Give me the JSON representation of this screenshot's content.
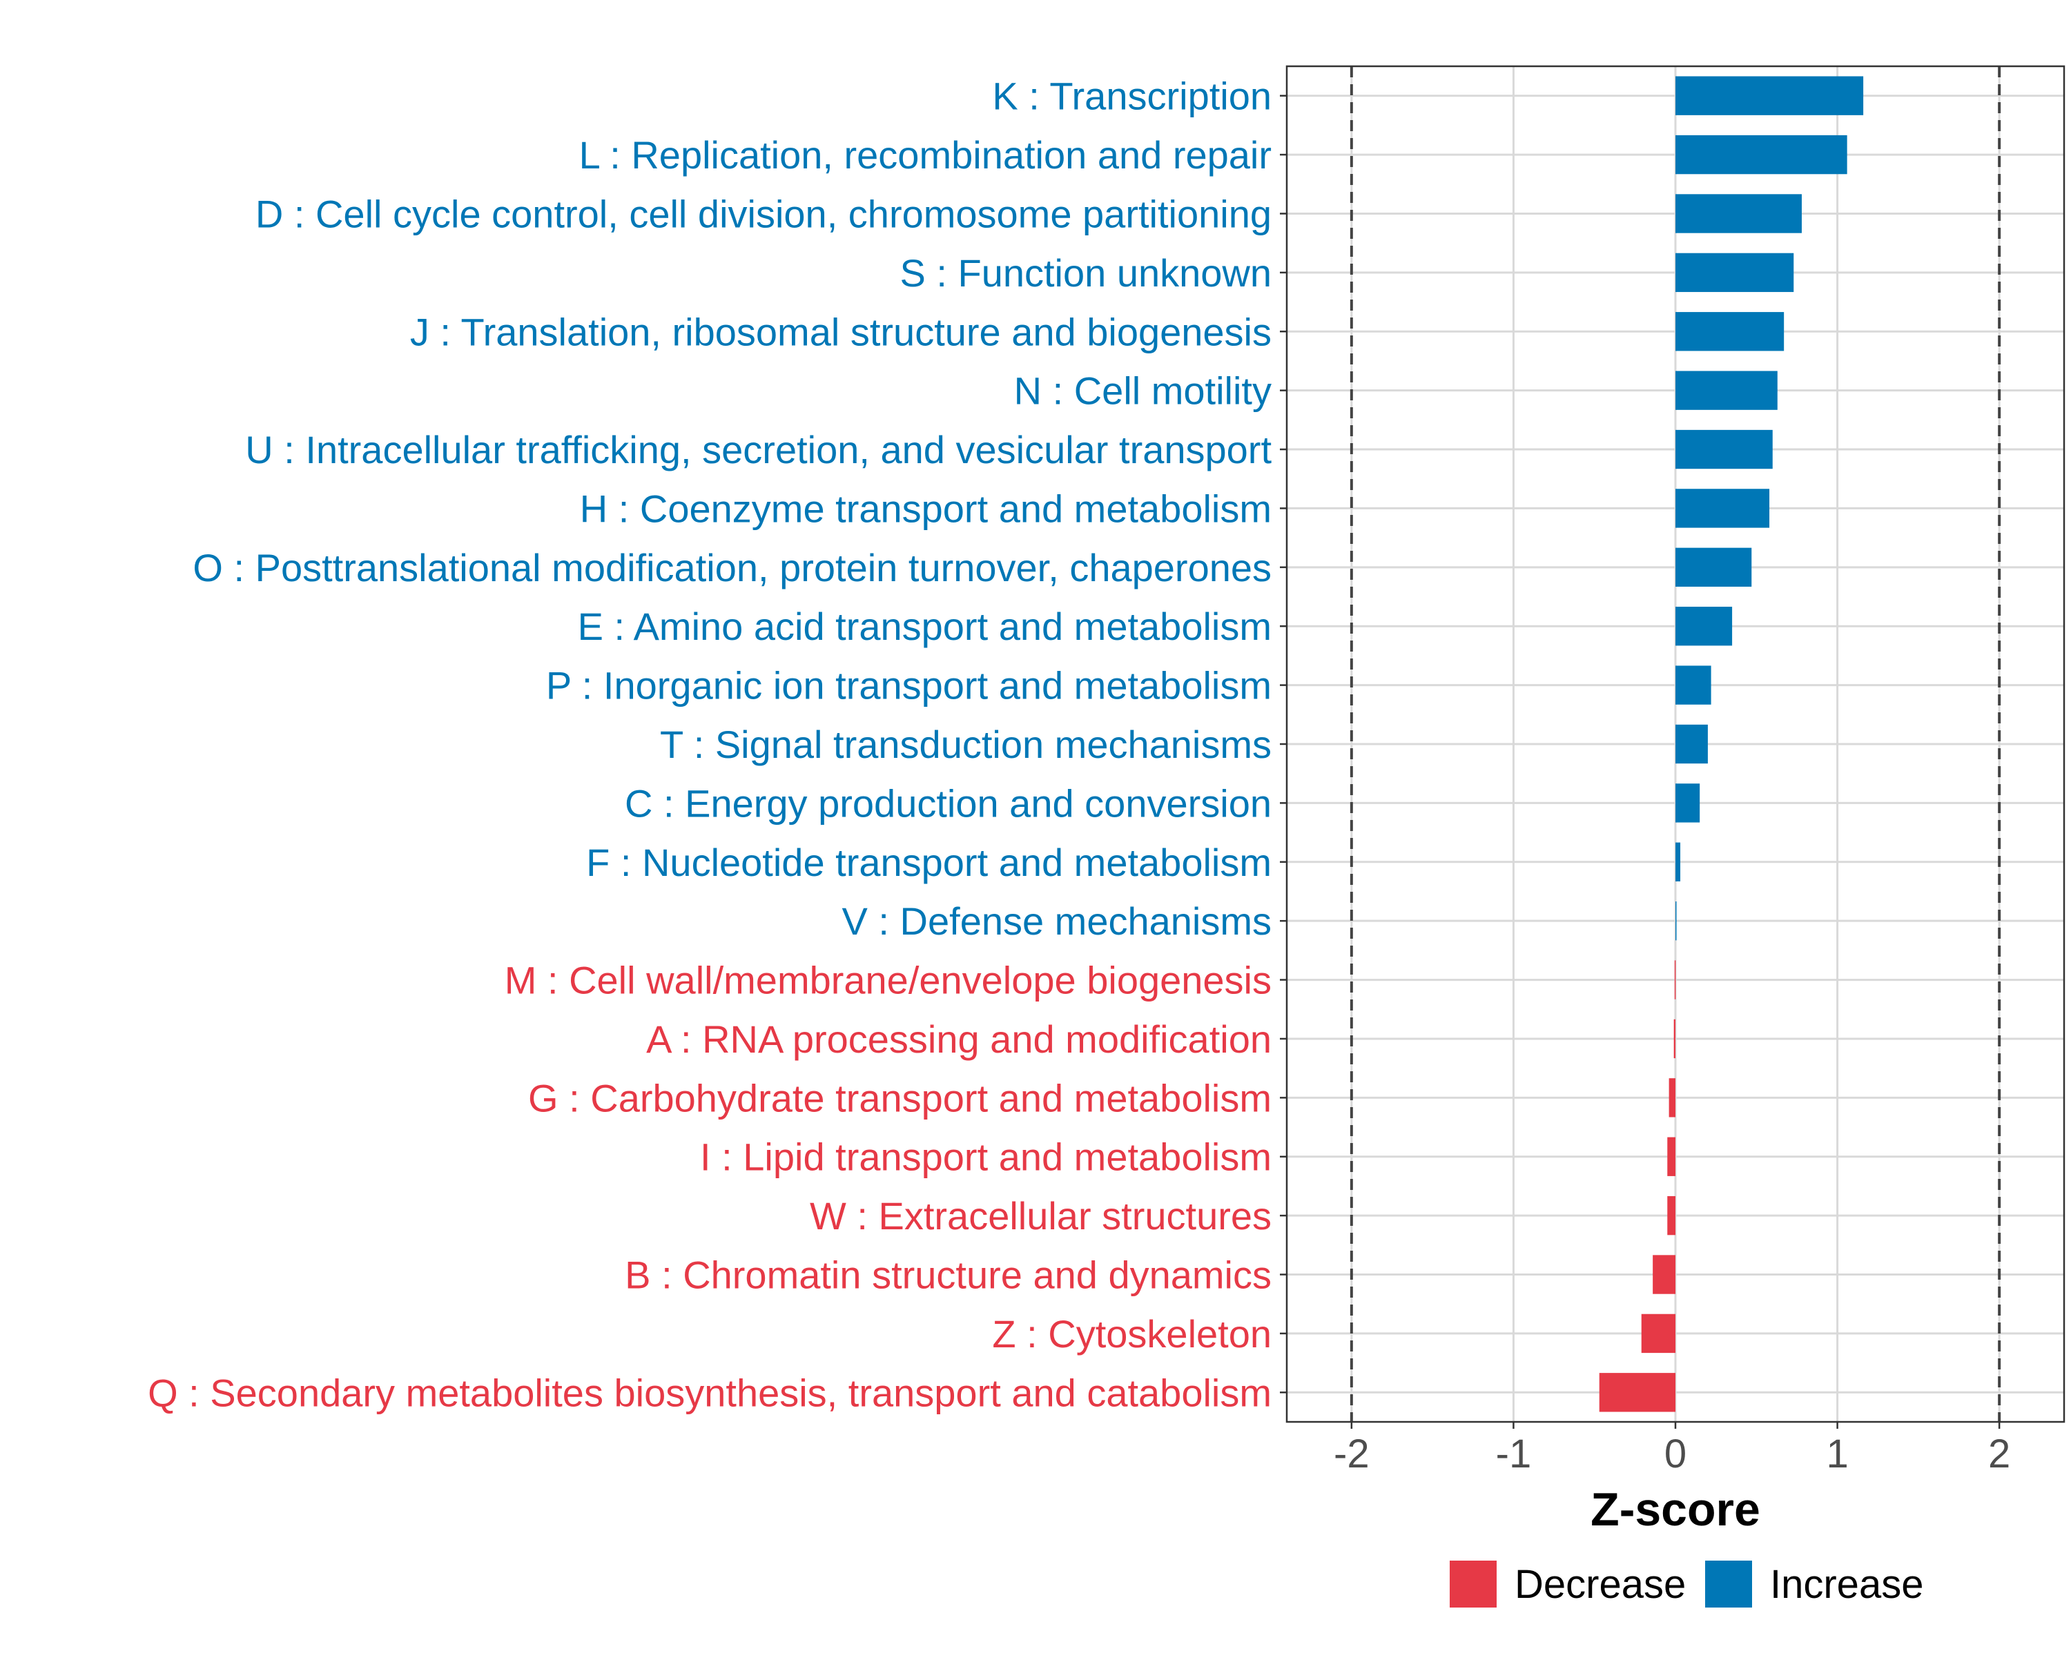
{
  "chart_data": {
    "type": "bar",
    "orientation": "horizontal",
    "title": "",
    "xlabel": "Z-score",
    "ylabel": "",
    "xlim": [
      -2.4,
      2.4
    ],
    "x_ticks": [
      -2,
      -1,
      0,
      1,
      2
    ],
    "x_tick_labels": [
      "-2",
      "-1",
      "0",
      "1",
      "2"
    ],
    "reference_lines": [
      -2,
      2
    ],
    "grid": true,
    "colors": {
      "Decrease": "#e63946",
      "Increase": "#0077b6"
    },
    "categories": [
      "K : Transcription",
      "L : Replication, recombination and repair",
      "D : Cell cycle control, cell division, chromosome partitioning",
      "S : Function unknown",
      "J : Translation, ribosomal structure and biogenesis",
      "N : Cell motility",
      "U : Intracellular trafficking, secretion, and vesicular transport",
      "H : Coenzyme transport and metabolism",
      "O : Posttranslational modification, protein turnover, chaperones",
      "E : Amino acid transport and metabolism",
      "P : Inorganic ion transport and metabolism",
      "T : Signal transduction mechanisms",
      "C : Energy production and conversion",
      "F : Nucleotide transport and metabolism",
      "V : Defense mechanisms",
      "M : Cell wall/membrane/envelope biogenesis",
      "A : RNA processing and modification",
      "G : Carbohydrate transport and metabolism",
      "I : Lipid transport and metabolism",
      "W : Extracellular structures",
      "B : Chromatin structure and dynamics",
      "Z : Cytoskeleton",
      "Q : Secondary metabolites biosynthesis, transport and catabolism"
    ],
    "values": [
      1.16,
      1.06,
      0.78,
      0.73,
      0.67,
      0.63,
      0.6,
      0.58,
      0.47,
      0.35,
      0.22,
      0.2,
      0.15,
      0.03,
      0.005,
      -0.005,
      -0.01,
      -0.04,
      -0.05,
      -0.05,
      -0.14,
      -0.21,
      -0.47
    ],
    "groups": [
      "Increase",
      "Increase",
      "Increase",
      "Increase",
      "Increase",
      "Increase",
      "Increase",
      "Increase",
      "Increase",
      "Increase",
      "Increase",
      "Increase",
      "Increase",
      "Increase",
      "Increase",
      "Decrease",
      "Decrease",
      "Decrease",
      "Decrease",
      "Decrease",
      "Decrease",
      "Decrease",
      "Decrease"
    ],
    "legend": {
      "position": "bottom",
      "entries": [
        {
          "label": "Decrease",
          "color": "#e63946"
        },
        {
          "label": "Increase",
          "color": "#0077b6"
        }
      ]
    }
  }
}
